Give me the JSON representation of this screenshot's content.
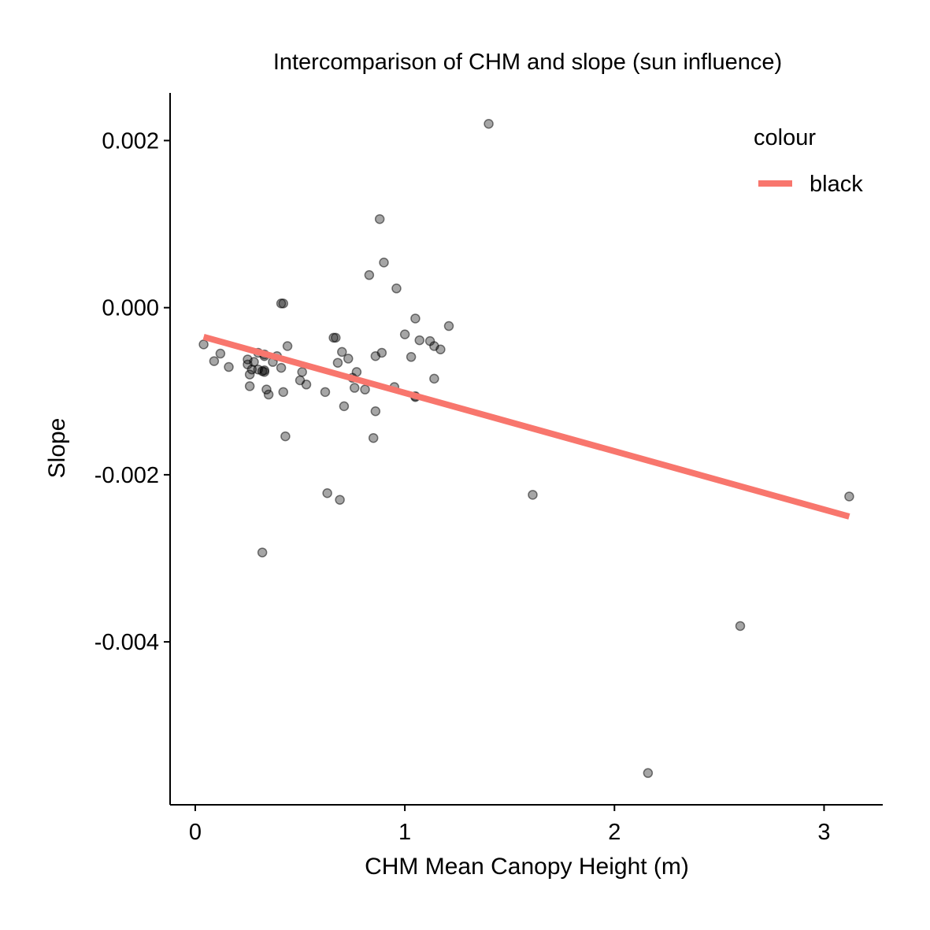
{
  "chart_data": {
    "type": "scatter",
    "title": "Intercomparison of CHM and slope (sun influence)",
    "xlabel": "CHM Mean Canopy Height (m)",
    "ylabel": "Slope",
    "xlim": [
      -0.12,
      3.28
    ],
    "ylim": [
      -0.00595,
      0.00257
    ],
    "x_ticks": [
      0,
      1,
      2,
      3
    ],
    "x_tick_labels": [
      "0",
      "1",
      "2",
      "3"
    ],
    "y_ticks": [
      0.002,
      0.0,
      -0.002,
      -0.004
    ],
    "y_tick_labels": [
      "0.002",
      "0.000",
      "-0.002",
      "-0.004"
    ],
    "grid": false,
    "legend": {
      "title": "colour",
      "position": "top-right",
      "entries": [
        {
          "label": "black",
          "color": "#F8766D"
        }
      ]
    },
    "points": {
      "color": "#000000",
      "opacity": 0.35,
      "x": [
        0.04,
        0.09,
        0.12,
        0.16,
        0.25,
        0.25,
        0.26,
        0.26,
        0.27,
        0.28,
        0.3,
        0.3,
        0.32,
        0.33,
        0.33,
        0.33,
        0.33,
        0.34,
        0.35,
        0.37,
        0.39,
        0.41,
        0.41,
        0.42,
        0.43,
        0.44,
        0.5,
        0.51,
        0.53,
        0.62,
        0.63,
        0.66,
        0.67,
        0.68,
        0.69,
        0.7,
        0.71,
        0.73,
        0.75,
        0.76,
        0.77,
        0.81,
        0.83,
        0.85,
        0.86,
        0.86,
        0.88,
        0.89,
        0.9,
        0.95,
        0.96,
        1.0,
        1.03,
        1.05,
        1.05,
        1.05,
        1.07,
        1.12,
        1.14,
        1.14,
        1.17,
        1.21,
        0.32,
        0.42,
        1.4,
        1.61,
        2.16,
        2.6,
        3.12
      ],
      "y": [
        -0.00044,
        -0.00064,
        -0.00055,
        -0.00071,
        -0.00068,
        -0.00062,
        -0.0008,
        -0.00094,
        -0.00074,
        -0.00065,
        -0.00054,
        -0.00074,
        -0.00076,
        -0.00056,
        -0.00075,
        -0.00077,
        -0.00058,
        -0.00098,
        -0.00104,
        -0.00065,
        -0.00058,
        -0.00072,
        5e-05,
        -0.00101,
        -0.00154,
        -0.00046,
        -0.00087,
        -0.00077,
        -0.00092,
        -0.00101,
        -0.00222,
        -0.00036,
        -0.00036,
        -0.00066,
        -0.0023,
        -0.00053,
        -0.00118,
        -0.00061,
        -0.00084,
        -0.00096,
        -0.00077,
        -0.00098,
        0.00039,
        -0.00156,
        -0.00058,
        -0.00124,
        0.00106,
        -0.00054,
        0.00054,
        -0.00095,
        0.00023,
        -0.00032,
        -0.00059,
        -0.00107,
        -0.00106,
        -0.00013,
        -0.00039,
        -0.0004,
        -0.00085,
        -0.00046,
        -0.0005,
        -0.00022,
        -0.00293,
        5e-05,
        0.0022,
        -0.00224,
        -0.00557,
        -0.00381,
        -0.00226
      ]
    },
    "fit_line": {
      "color": "#F8766D",
      "x": [
        0.04,
        3.12
      ],
      "y": [
        -0.00035,
        -0.0025
      ]
    }
  }
}
